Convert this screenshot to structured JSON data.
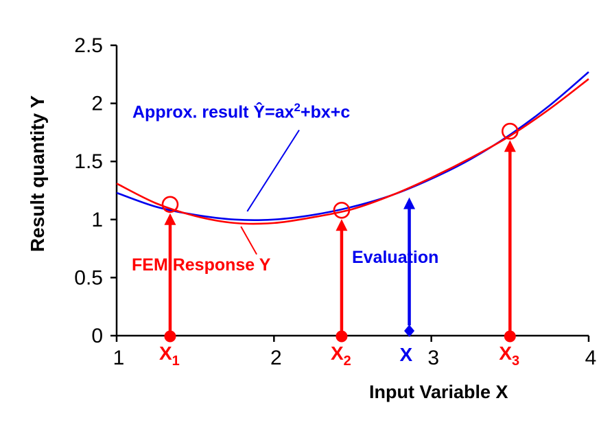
{
  "figure": {
    "background": "#FFFFFF",
    "colors": {
      "fem": "#FF0000",
      "approx": "#0000EE",
      "axis": "#000000"
    }
  },
  "labels": {
    "approx_prefix": "Approx. result ",
    "approx_yhat": "Ŷ",
    "approx_eq_pre_sup": "=ax",
    "approx_sup": "2",
    "approx_eq_post": "+bx+c",
    "fem": "FEM Response  Y",
    "evaluation": "Evaluation",
    "xlabel": "Input Variable  X",
    "ylabel": "Result quantity  Y"
  },
  "chart_data": {
    "type": "line",
    "title": "",
    "xlabel": "Input Variable X",
    "ylabel": "Result quantity Y",
    "xlim": [
      1,
      4
    ],
    "ylim": [
      0,
      2.5
    ],
    "x_ticks": [
      1,
      2,
      3,
      4
    ],
    "y_ticks": [
      0,
      0.5,
      1,
      1.5,
      2,
      2.5
    ],
    "grid": false,
    "legend": "inline-annotations",
    "series": [
      {
        "name": "Approx. result Ŷ=ax²+bx+c",
        "color": "#0000EE",
        "x": [
          1,
          1.25,
          1.5,
          1.75,
          2,
          2.25,
          2.5,
          2.75,
          3,
          3.25,
          3.5,
          3.75,
          4
        ],
        "y": [
          1.23,
          1.11,
          1.04,
          1.0,
          1.0,
          1.04,
          1.11,
          1.21,
          1.35,
          1.52,
          1.73,
          1.98,
          2.27
        ]
      },
      {
        "name": "FEM Response Y",
        "color": "#FF0000",
        "x": [
          1,
          1.25,
          1.5,
          1.75,
          2,
          2.25,
          2.5,
          2.75,
          3,
          3.25,
          3.5,
          3.75,
          4
        ],
        "y": [
          1.31,
          1.14,
          1.03,
          0.97,
          0.97,
          1.02,
          1.09,
          1.21,
          1.36,
          1.53,
          1.72,
          1.95,
          2.21
        ]
      }
    ],
    "sample_points": [
      {
        "label": "X",
        "sub": "1",
        "x": 1.34,
        "circle_y": 1.13
      },
      {
        "label": "X",
        "sub": "2",
        "x": 2.43,
        "circle_y": 1.08
      },
      {
        "label": "X",
        "sub": "3",
        "x": 3.5,
        "circle_y": 1.76
      }
    ],
    "evaluation": {
      "label": "X",
      "x": 2.86,
      "arrow_top_y": 1.19
    },
    "leaders": {
      "approx": {
        "x1": 2.16,
        "y1": 1.77,
        "x2": 1.83,
        "y2": 1.07
      },
      "fem": {
        "x1": 1.79,
        "y1": 0.94,
        "x2": 1.89,
        "y2": 0.7
      }
    }
  }
}
